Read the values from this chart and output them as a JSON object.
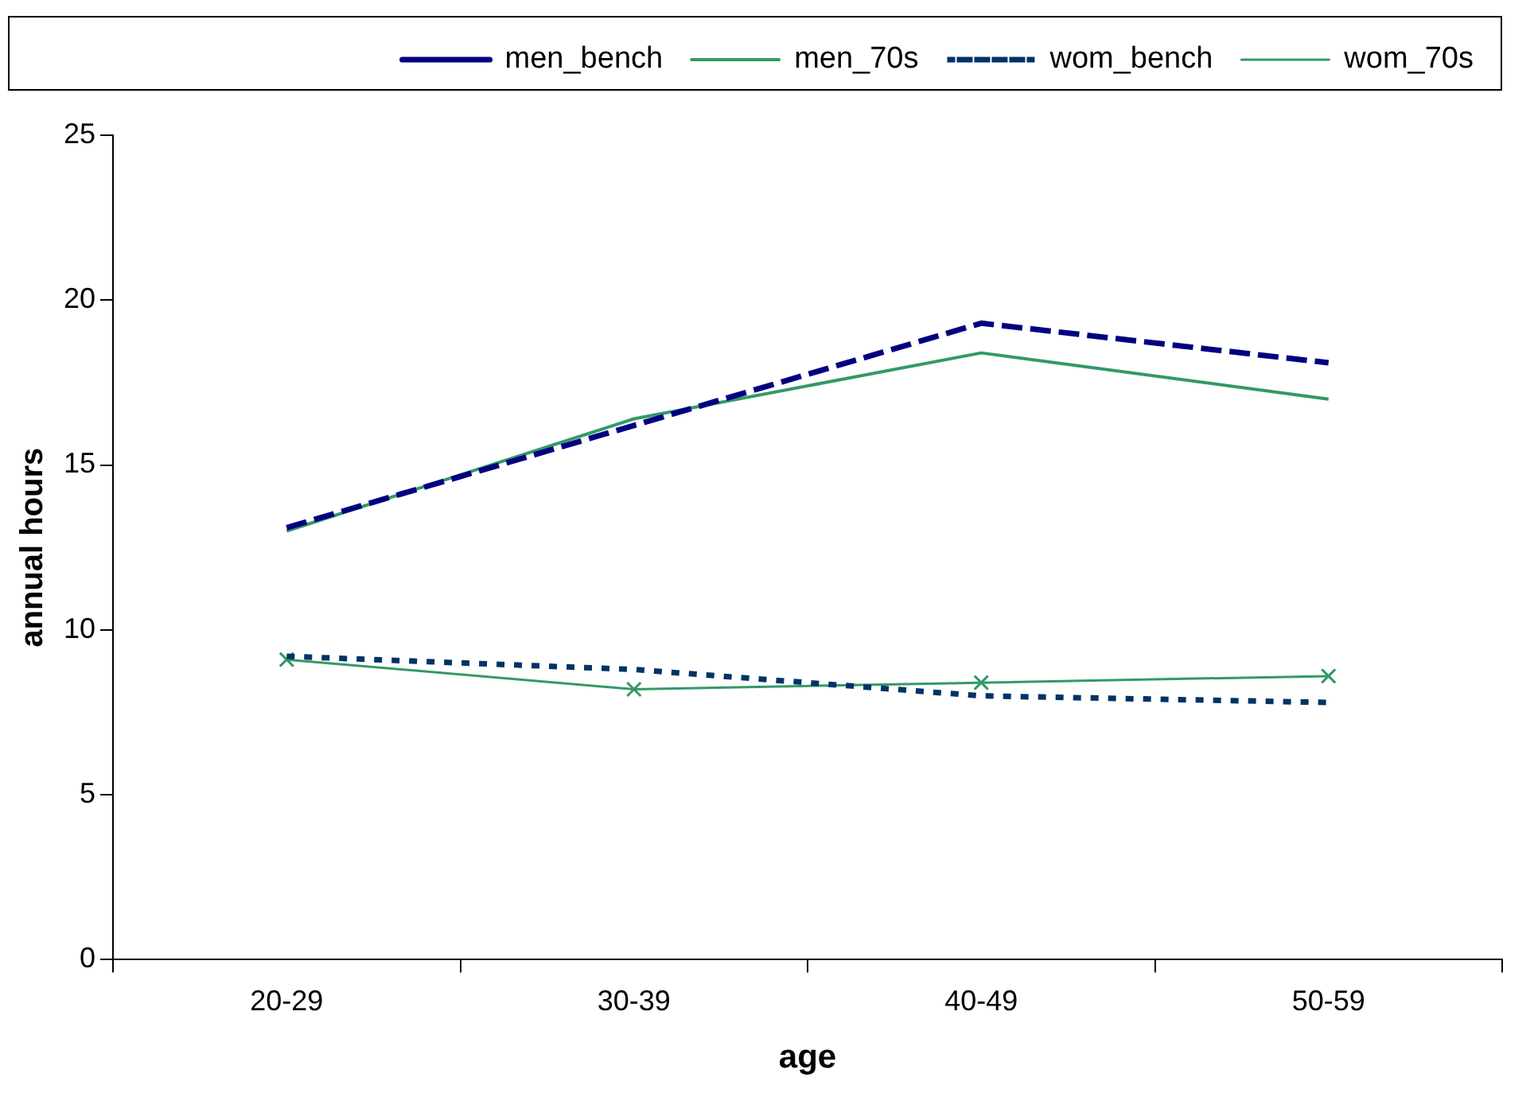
{
  "chart_data": {
    "type": "line",
    "xlabel": "age",
    "ylabel": "annual hours",
    "categories": [
      "20-29",
      "30-39",
      "40-49",
      "50-59"
    ],
    "series": [
      {
        "name": "men_bench",
        "color": "#000080",
        "line_style": "dashed",
        "marker": "none",
        "values": [
          13.1,
          16.2,
          19.3,
          18.1
        ]
      },
      {
        "name": "men_70s",
        "color": "#339966",
        "line_style": "solid",
        "marker": "none",
        "values": [
          13.0,
          16.4,
          18.4,
          17.0
        ]
      },
      {
        "name": "wom_bench",
        "color": "#003366",
        "line_style": "dotted",
        "marker": "none",
        "values": [
          9.2,
          8.8,
          8.0,
          7.8
        ]
      },
      {
        "name": "wom_70s",
        "color": "#339966",
        "line_style": "solid",
        "marker": "cross",
        "values": [
          9.1,
          8.2,
          8.4,
          8.6
        ]
      }
    ],
    "ylim": [
      0,
      25
    ],
    "yticks": [
      0,
      5,
      10,
      15,
      20,
      25
    ],
    "grid": false,
    "legend": "top"
  }
}
